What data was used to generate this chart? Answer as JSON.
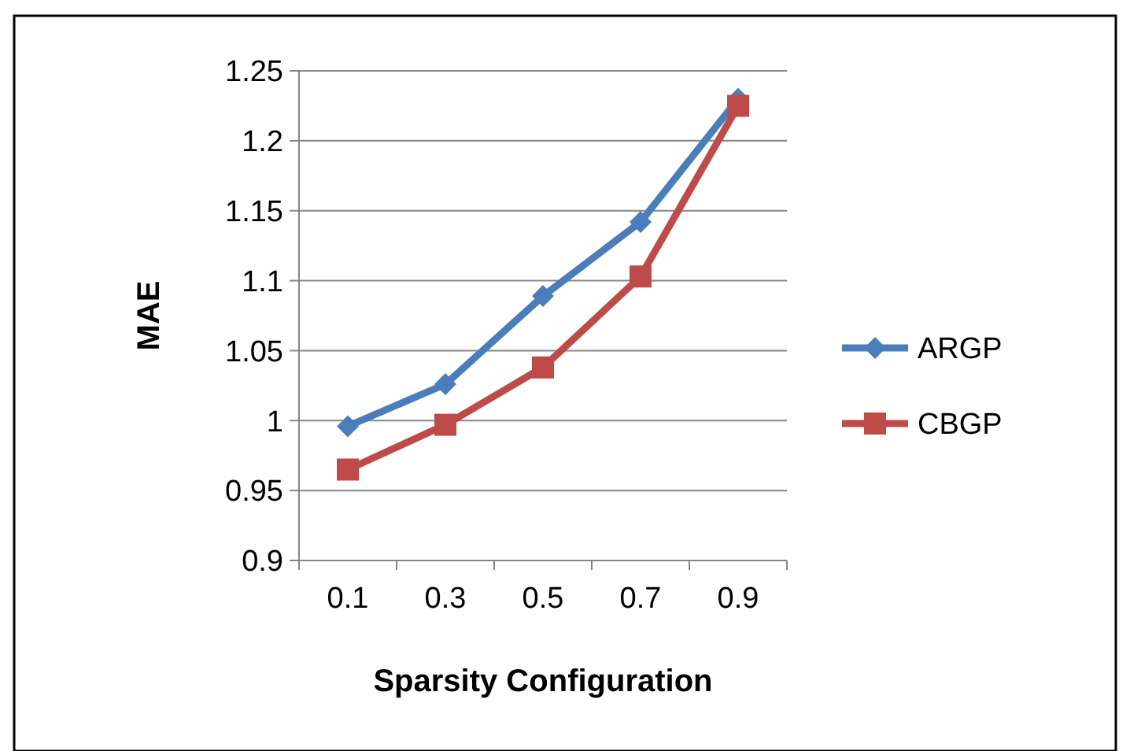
{
  "chart_data": {
    "type": "line",
    "xlabel": "Sparsity Configuration",
    "ylabel": "MAE",
    "categories": [
      "0.1",
      "0.3",
      "0.5",
      "0.7",
      "0.9"
    ],
    "series": [
      {
        "name": "ARGP",
        "color": "#4a7ebb",
        "marker": "diamond",
        "values": [
          0.996,
          1.026,
          1.089,
          1.142,
          1.23
        ]
      },
      {
        "name": "CBGP",
        "color": "#be4b48",
        "marker": "square",
        "values": [
          0.965,
          0.997,
          1.038,
          1.103,
          1.225
        ]
      }
    ],
    "ylim": [
      0.9,
      1.25
    ],
    "yticks": [
      0.9,
      0.95,
      1,
      1.05,
      1.1,
      1.15,
      1.2,
      1.25
    ],
    "grid": "y",
    "legend": "right"
  }
}
